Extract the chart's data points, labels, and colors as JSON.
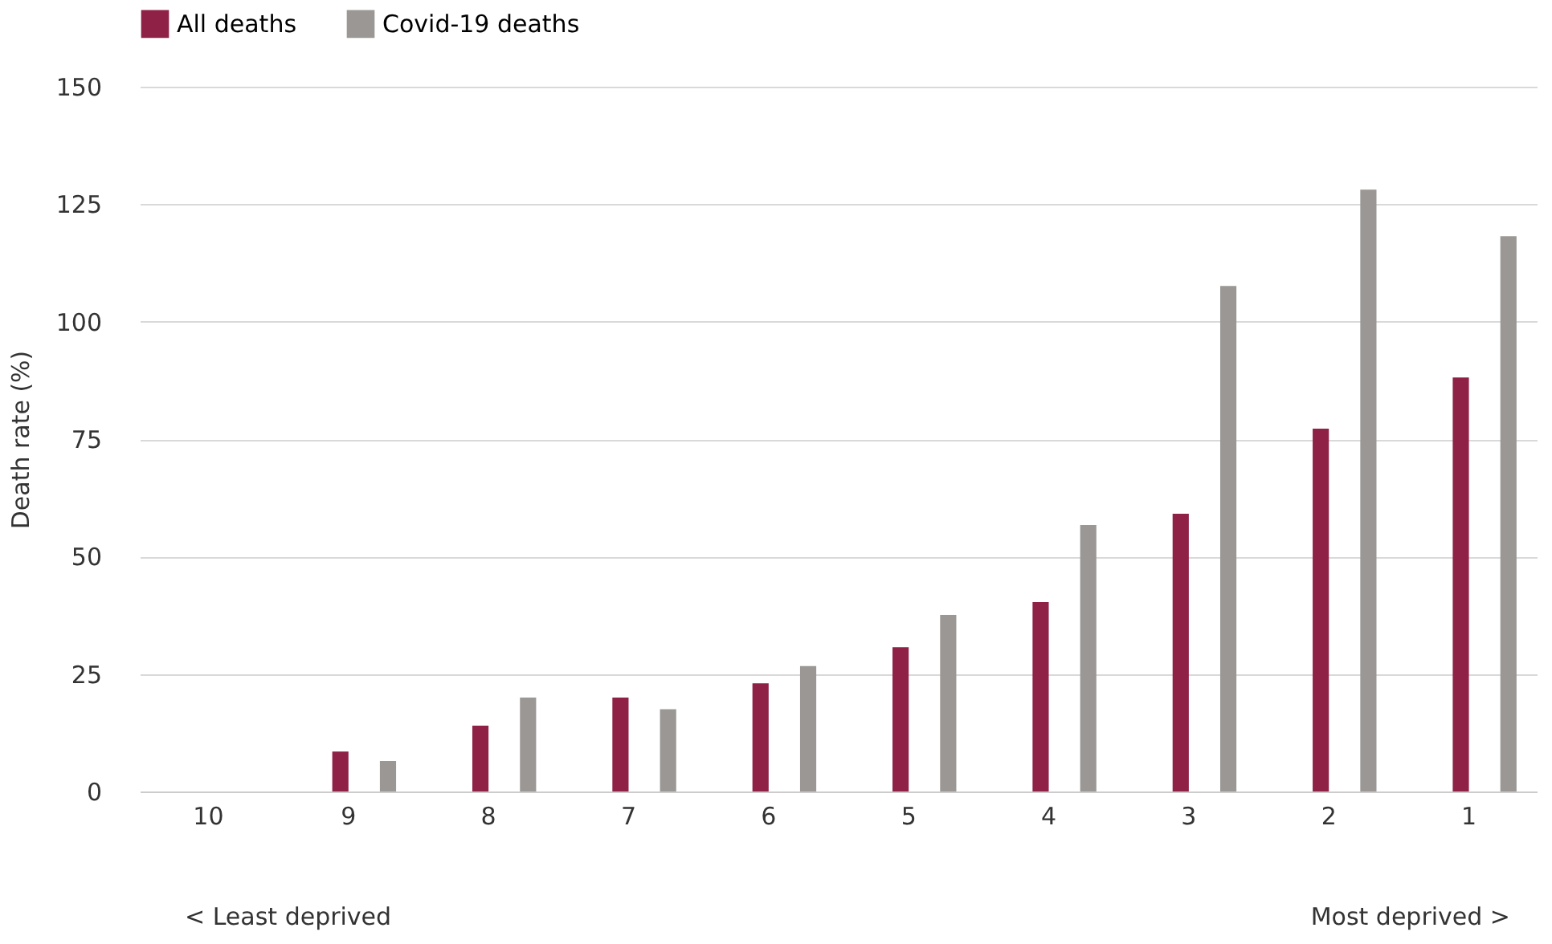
{
  "chart_data": {
    "type": "bar",
    "ylabel": "Death rate (%)",
    "categories": [
      "10",
      "9",
      "8",
      "7",
      "6",
      "5",
      "4",
      "3",
      "2",
      "1"
    ],
    "series": [
      {
        "name": "All deaths",
        "color": "#8f2146",
        "values": [
          0,
          8.5,
          14,
          20,
          23,
          30.7,
          40.3,
          59.1,
          77.2,
          88.1
        ]
      },
      {
        "name": "Covid-19 deaths",
        "color": "#9b9794",
        "values": [
          0,
          6.5,
          20,
          17.5,
          26.7,
          37.6,
          56.7,
          107.6,
          128.1,
          118.2
        ]
      }
    ],
    "ylim": [
      0,
      150
    ],
    "yticks": [
      0,
      25,
      50,
      75,
      100,
      125,
      150
    ],
    "grid": "y",
    "legend": "top left",
    "annotations": [
      "< Least deprived",
      "Most deprived >"
    ]
  }
}
